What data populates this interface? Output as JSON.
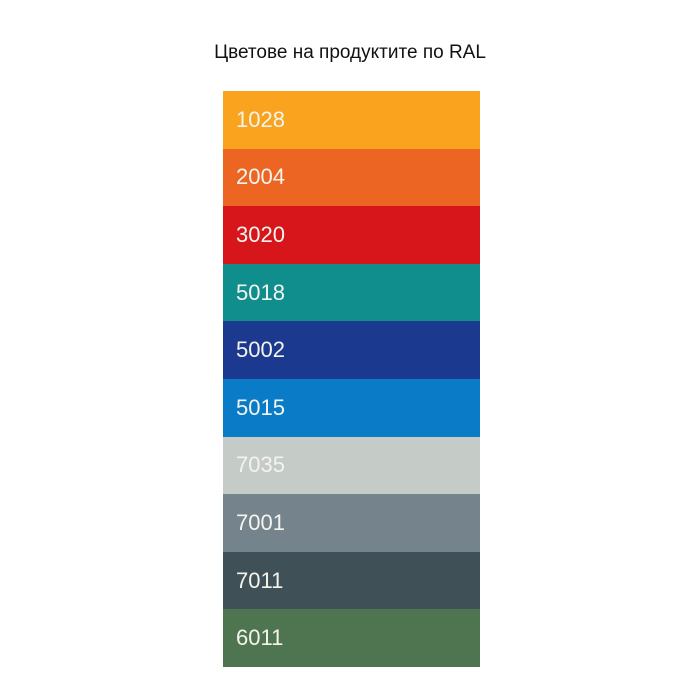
{
  "title": "Цветове на продуктите по RAL",
  "swatches": [
    {
      "code": "1028",
      "color": "#f9a31f"
    },
    {
      "code": "2004",
      "color": "#ec6523"
    },
    {
      "code": "3020",
      "color": "#d7161c"
    },
    {
      "code": "5018",
      "color": "#108e8d"
    },
    {
      "code": "5002",
      "color": "#1c3990"
    },
    {
      "code": "5015",
      "color": "#0a7cc7"
    },
    {
      "code": "7035",
      "color": "#c5cbc6"
    },
    {
      "code": "7001",
      "color": "#75838c"
    },
    {
      "code": "7011",
      "color": "#3f5157"
    },
    {
      "code": "6011",
      "color": "#4f7550"
    }
  ]
}
